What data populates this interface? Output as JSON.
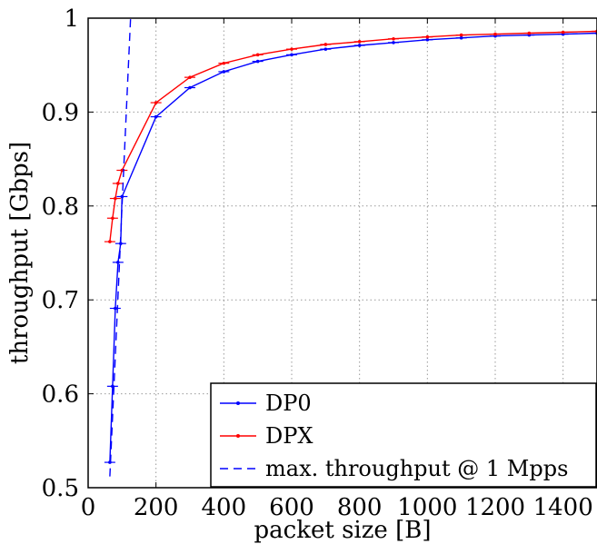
{
  "chart_data": {
    "type": "line",
    "title": "",
    "xlabel": "packet size [B]",
    "ylabel": "throughput [Gbps]",
    "xlim": [
      0,
      1500
    ],
    "ylim": [
      0.5,
      1.0
    ],
    "x_ticks": [
      0,
      200,
      400,
      600,
      800,
      1000,
      1200,
      1400
    ],
    "y_ticks": [
      0.5,
      0.6,
      0.7,
      0.8,
      0.9,
      1.0
    ],
    "x_tick_labels": [
      "0",
      "200",
      "400",
      "600",
      "800",
      "1000",
      "1200",
      "1400"
    ],
    "y_tick_labels": [
      "0.5",
      "0.6",
      "0.7",
      "0.8",
      "0.9",
      "1"
    ],
    "grid": true,
    "legend_position": "bottom-right",
    "series": [
      {
        "name": "DP0",
        "color": "#0000ff",
        "style": "solid",
        "points": [
          {
            "x": 64,
            "y": 0.527
          },
          {
            "x": 72,
            "y": 0.608
          },
          {
            "x": 80,
            "y": 0.691
          },
          {
            "x": 88,
            "y": 0.74
          },
          {
            "x": 96,
            "y": 0.76
          },
          {
            "x": 100,
            "y": 0.81
          },
          {
            "x": 200,
            "y": 0.895
          },
          {
            "x": 300,
            "y": 0.926
          },
          {
            "x": 400,
            "y": 0.943
          },
          {
            "x": 500,
            "y": 0.954
          },
          {
            "x": 600,
            "y": 0.961
          },
          {
            "x": 700,
            "y": 0.967
          },
          {
            "x": 800,
            "y": 0.971
          },
          {
            "x": 900,
            "y": 0.974
          },
          {
            "x": 1000,
            "y": 0.977
          },
          {
            "x": 1100,
            "y": 0.979
          },
          {
            "x": 1200,
            "y": 0.981
          },
          {
            "x": 1300,
            "y": 0.982
          },
          {
            "x": 1400,
            "y": 0.983
          },
          {
            "x": 1500,
            "y": 0.984
          }
        ]
      },
      {
        "name": "DPX",
        "color": "#ff0000",
        "style": "solid",
        "points": [
          {
            "x": 64,
            "y": 0.762
          },
          {
            "x": 72,
            "y": 0.787
          },
          {
            "x": 80,
            "y": 0.808
          },
          {
            "x": 88,
            "y": 0.824
          },
          {
            "x": 100,
            "y": 0.838
          },
          {
            "x": 200,
            "y": 0.91
          },
          {
            "x": 300,
            "y": 0.937
          },
          {
            "x": 400,
            "y": 0.952
          },
          {
            "x": 500,
            "y": 0.961
          },
          {
            "x": 600,
            "y": 0.967
          },
          {
            "x": 700,
            "y": 0.972
          },
          {
            "x": 800,
            "y": 0.975
          },
          {
            "x": 900,
            "y": 0.978
          },
          {
            "x": 1000,
            "y": 0.98
          },
          {
            "x": 1100,
            "y": 0.982
          },
          {
            "x": 1200,
            "y": 0.983
          },
          {
            "x": 1300,
            "y": 0.984
          },
          {
            "x": 1400,
            "y": 0.985
          },
          {
            "x": 1500,
            "y": 0.986
          }
        ]
      },
      {
        "name": "max. throughput @ 1 Mpps",
        "color": "#0000ff",
        "style": "dashed",
        "points": [
          {
            "x": 64,
            "y": 0.512
          },
          {
            "x": 80,
            "y": 0.64
          },
          {
            "x": 100,
            "y": 0.8
          },
          {
            "x": 112,
            "y": 0.896
          },
          {
            "x": 125,
            "y": 1.0
          }
        ]
      }
    ]
  }
}
